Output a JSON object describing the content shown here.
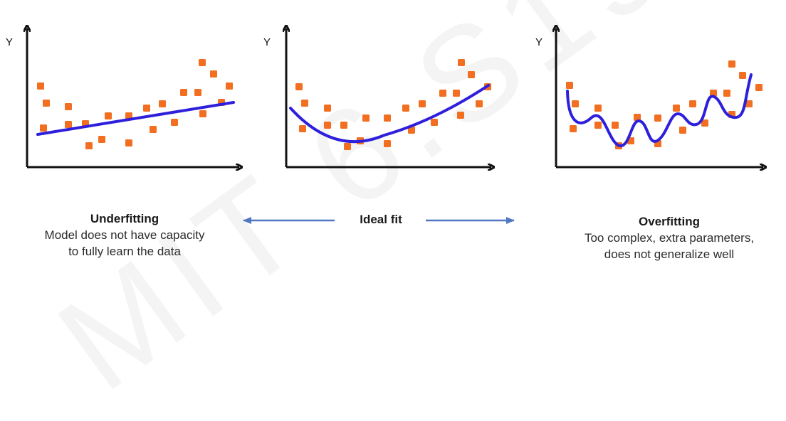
{
  "watermark": "MIT 6.S191",
  "colors": {
    "points": "#f26f21",
    "fit_curve": "#2d1fdc",
    "axes": "#111111",
    "arrow": "#4f77c2"
  },
  "icons": [
    "left-arrow-icon",
    "right-arrow-icon"
  ],
  "captions": {
    "underfitting": {
      "title": "Underfitting",
      "line1": "Model does not have capacity",
      "line2": "to fully learn the data"
    },
    "ideal": {
      "title": "Ideal fit"
    },
    "overfitting": {
      "title": "Overfitting",
      "line1": "Too complex, extra parameters,",
      "line2": "does not generalize well"
    }
  },
  "panels": [
    {
      "axis_label": "Y"
    },
    {
      "axis_label": "Y"
    },
    {
      "axis_label": "Y"
    }
  ]
}
